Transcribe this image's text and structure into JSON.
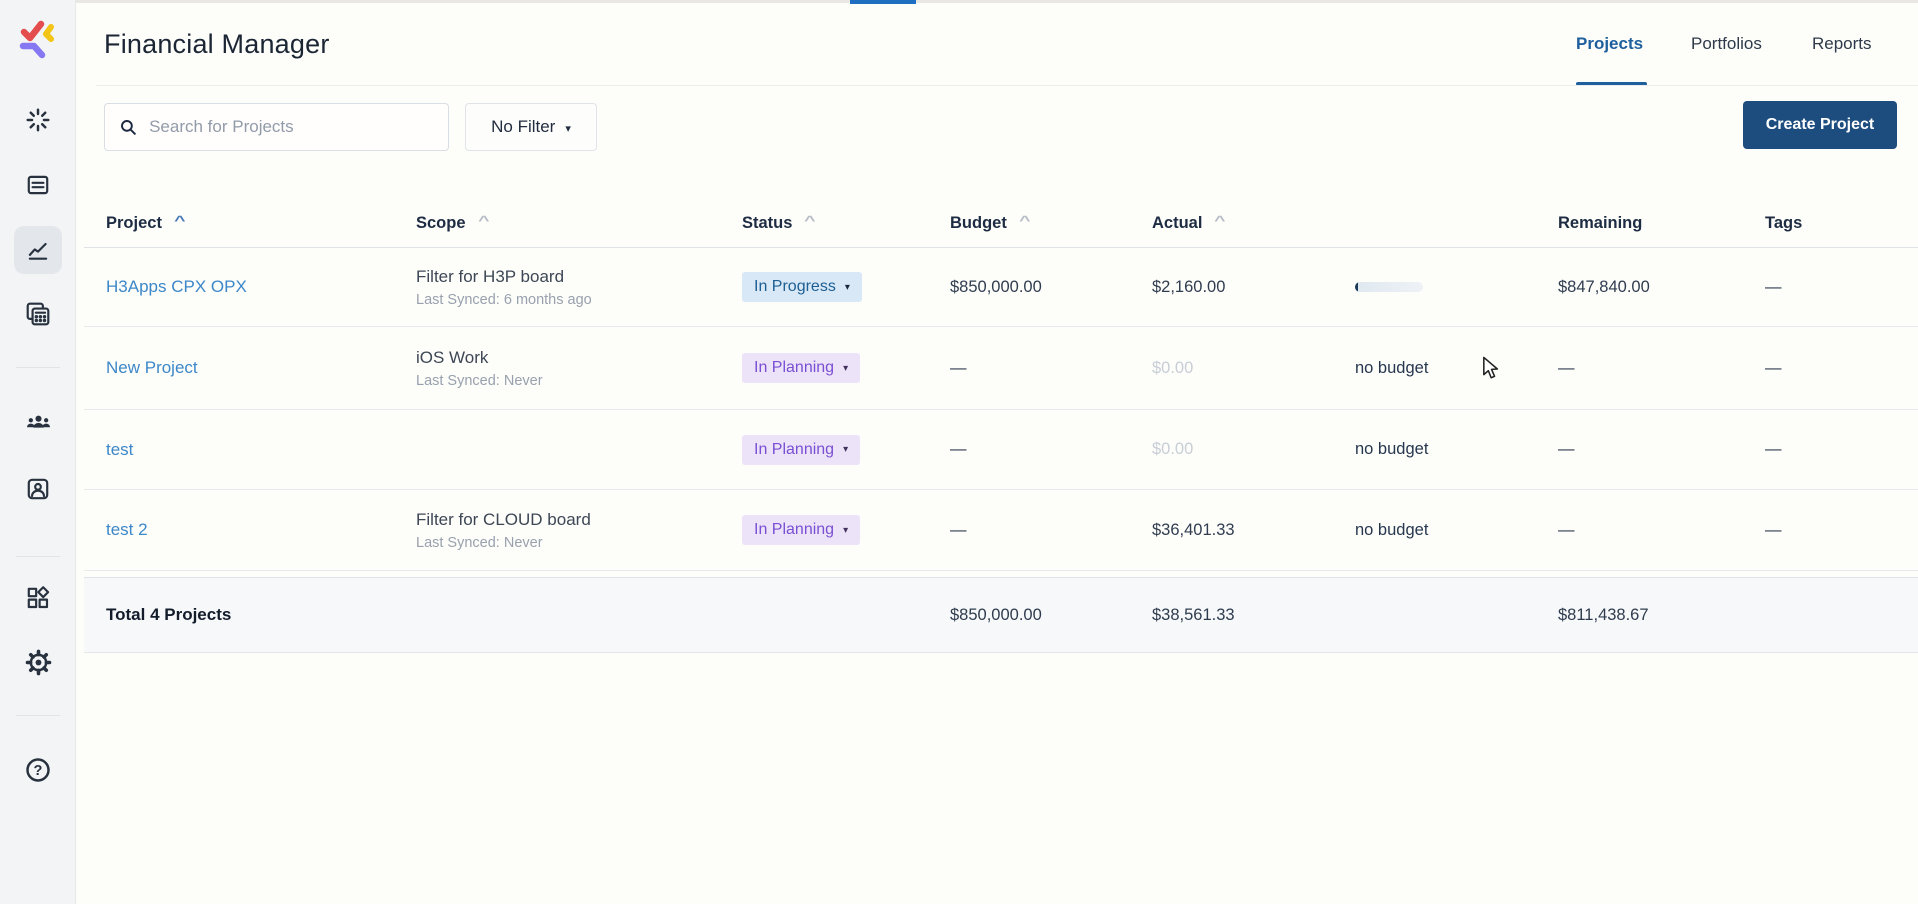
{
  "app": {
    "title": "Financial Manager"
  },
  "nav": {
    "tabs": [
      {
        "label": "Projects",
        "active": true
      },
      {
        "label": "Portfolios",
        "active": false
      },
      {
        "label": "Reports",
        "active": false
      }
    ]
  },
  "toolbar": {
    "search_placeholder": "Search for Projects",
    "filter_label": "No Filter",
    "create_label": "Create Project"
  },
  "icons": {
    "caret_down": "▾",
    "sort_asc": "^",
    "help_glyph": "?"
  },
  "table": {
    "headers": {
      "project": "Project",
      "scope": "Scope",
      "status": "Status",
      "budget": "Budget",
      "actual": "Actual",
      "remaining": "Remaining",
      "tags": "Tags"
    },
    "rows": [
      {
        "project": "H3Apps CPX OPX",
        "scope_line1": "Filter for H3P board",
        "scope_line2": "Last Synced: 6 months ago",
        "status": "In Progress",
        "status_variant": "blue",
        "budget": "$850,000.00",
        "actual": "$2,160.00",
        "actual_muted": false,
        "budget_usage": "bar",
        "usage_text": "",
        "usage_fill_percent": 4,
        "remaining": "$847,840.00",
        "tags": "—"
      },
      {
        "project": "New Project",
        "scope_line1": "iOS Work",
        "scope_line2": "Last Synced: Never",
        "status": "In Planning",
        "status_variant": "purple",
        "budget": "—",
        "actual": "$0.00",
        "actual_muted": true,
        "budget_usage": "text",
        "usage_text": "no budget",
        "usage_fill_percent": 0,
        "remaining": "—",
        "tags": "—"
      },
      {
        "project": "test",
        "scope_line1": "",
        "scope_line2": "",
        "status": "In Planning",
        "status_variant": "purple",
        "budget": "—",
        "actual": "$0.00",
        "actual_muted": true,
        "budget_usage": "text",
        "usage_text": "no budget",
        "usage_fill_percent": 0,
        "remaining": "—",
        "tags": "—"
      },
      {
        "project": "test 2",
        "scope_line1": "Filter for CLOUD board",
        "scope_line2": "Last Synced: Never",
        "status": "In Planning",
        "status_variant": "purple",
        "budget": "—",
        "actual": "$36,401.33",
        "actual_muted": false,
        "budget_usage": "text",
        "usage_text": "no budget",
        "usage_fill_percent": 0,
        "remaining": "—",
        "tags": "—"
      }
    ],
    "totals": {
      "label": "Total 4 Projects",
      "budget": "$850,000.00",
      "actual": "$38,561.33",
      "remaining": "$811,438.67"
    }
  },
  "colors": {
    "accent_blue": "#1e5f9e",
    "link_blue": "#3c87c8",
    "button_navy": "#1d4d7f",
    "loading_bar_blue": "#1e6ec2",
    "badge_blue_bg": "#d8e8f6",
    "badge_blue_text": "#1d5e93",
    "badge_purple_bg": "#ece3f8",
    "badge_purple_text": "#7a4fd3",
    "totals_bg": "#f6f8f9"
  }
}
